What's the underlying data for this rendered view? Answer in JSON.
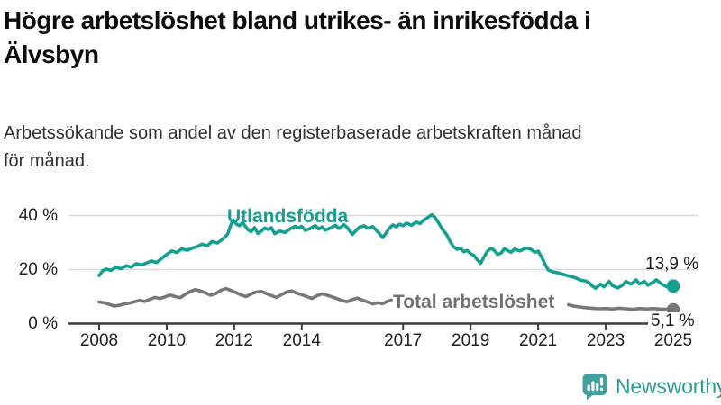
{
  "title": {
    "line1": "Högre arbetslöshet bland utrikes- än inrikesfödda i",
    "line2": "Älvsbyn"
  },
  "subtitle": {
    "line1": "Arbetssökande som andel av den registerbaserade arbetskraften månad",
    "line2": "för månad."
  },
  "logo": {
    "text": "Newsworthy",
    "icon": "newsworthy-bubble-barchart-icon",
    "text_color": "#2f9c92",
    "icon_color": "#43a39c"
  },
  "colors": {
    "foreign_born_line": "#14a090",
    "total_line": "#76767b",
    "gridline": "#dadada",
    "axis": "#3a3a3c",
    "axis_text": "#1f1f1f"
  },
  "chart_data": {
    "type": "line",
    "unit": "%",
    "grid": "horizontal",
    "x_range": [
      2008,
      2025.05
    ],
    "ylim": [
      0,
      44
    ],
    "yticks": [
      {
        "value": 40,
        "label": "40 %"
      },
      {
        "value": 20,
        "label": "20 %"
      },
      {
        "value": 0,
        "label": "0 %"
      }
    ],
    "xticks": [
      {
        "value": 2008,
        "label": "2008"
      },
      {
        "value": 2010,
        "label": "2010"
      },
      {
        "value": 2012,
        "label": "2012"
      },
      {
        "value": 2014,
        "label": "2014"
      },
      {
        "value": 2017,
        "label": "2017"
      },
      {
        "value": 2019,
        "label": "2019"
      },
      {
        "value": 2021,
        "label": "2021"
      },
      {
        "value": 2023,
        "label": "2023"
      },
      {
        "value": 2025,
        "label": "2025"
      }
    ],
    "series": [
      {
        "name": "Utlandsfödda",
        "color": "#14a090",
        "end_value": 13.9,
        "end_label": "13,9 %",
        "points": [
          [
            2008.0,
            17.8
          ],
          [
            2008.1,
            19.5
          ],
          [
            2008.2,
            20.2
          ],
          [
            2008.35,
            19.7
          ],
          [
            2008.5,
            20.9
          ],
          [
            2008.65,
            20.3
          ],
          [
            2008.8,
            21.4
          ],
          [
            2008.95,
            20.9
          ],
          [
            2009.1,
            22.2
          ],
          [
            2009.25,
            21.7
          ],
          [
            2009.4,
            22.4
          ],
          [
            2009.55,
            23.2
          ],
          [
            2009.7,
            22.6
          ],
          [
            2009.85,
            24.1
          ],
          [
            2010.0,
            25.6
          ],
          [
            2010.15,
            26.9
          ],
          [
            2010.3,
            26.3
          ],
          [
            2010.45,
            27.7
          ],
          [
            2010.6,
            27.1
          ],
          [
            2010.75,
            27.9
          ],
          [
            2010.9,
            28.5
          ],
          [
            2011.05,
            29.4
          ],
          [
            2011.2,
            28.8
          ],
          [
            2011.35,
            30.4
          ],
          [
            2011.5,
            29.8
          ],
          [
            2011.65,
            31.2
          ],
          [
            2011.8,
            33.0
          ],
          [
            2011.9,
            36.5
          ],
          [
            2011.97,
            38.3
          ],
          [
            2012.05,
            37.0
          ],
          [
            2012.15,
            36.2
          ],
          [
            2012.25,
            37.4
          ],
          [
            2012.4,
            34.8
          ],
          [
            2012.5,
            34.0
          ],
          [
            2012.6,
            35.5
          ],
          [
            2012.7,
            33.4
          ],
          [
            2012.8,
            34.2
          ],
          [
            2012.9,
            35.4
          ],
          [
            2013.0,
            34.8
          ],
          [
            2013.1,
            35.5
          ],
          [
            2013.2,
            33.3
          ],
          [
            2013.35,
            34.3
          ],
          [
            2013.5,
            33.7
          ],
          [
            2013.65,
            35.0
          ],
          [
            2013.8,
            36.0
          ],
          [
            2013.9,
            35.4
          ],
          [
            2014.0,
            36.0
          ],
          [
            2014.1,
            34.5
          ],
          [
            2014.25,
            35.2
          ],
          [
            2014.4,
            36.3
          ],
          [
            2014.5,
            35.0
          ],
          [
            2014.6,
            35.8
          ],
          [
            2014.7,
            34.6
          ],
          [
            2014.85,
            35.4
          ],
          [
            2015.0,
            36.4
          ],
          [
            2015.1,
            35.2
          ],
          [
            2015.25,
            36.6
          ],
          [
            2015.35,
            35.5
          ],
          [
            2015.5,
            33.0
          ],
          [
            2015.6,
            34.4
          ],
          [
            2015.7,
            35.6
          ],
          [
            2015.85,
            36.2
          ],
          [
            2015.95,
            35.3
          ],
          [
            2016.1,
            35.9
          ],
          [
            2016.25,
            34.0
          ],
          [
            2016.4,
            31.8
          ],
          [
            2016.5,
            33.6
          ],
          [
            2016.6,
            35.4
          ],
          [
            2016.7,
            36.5
          ],
          [
            2016.8,
            35.8
          ],
          [
            2016.9,
            36.8
          ],
          [
            2017.0,
            36.2
          ],
          [
            2017.1,
            37.2
          ],
          [
            2017.25,
            36.4
          ],
          [
            2017.4,
            37.6
          ],
          [
            2017.5,
            37.0
          ],
          [
            2017.6,
            38.2
          ],
          [
            2017.7,
            39.0
          ],
          [
            2017.85,
            40.3
          ],
          [
            2017.95,
            39.2
          ],
          [
            2018.05,
            37.3
          ],
          [
            2018.15,
            35.2
          ],
          [
            2018.3,
            32.8
          ],
          [
            2018.4,
            30.2
          ],
          [
            2018.5,
            28.4
          ],
          [
            2018.6,
            27.5
          ],
          [
            2018.7,
            27.9
          ],
          [
            2018.8,
            26.6
          ],
          [
            2018.9,
            27.1
          ],
          [
            2019.0,
            25.9
          ],
          [
            2019.1,
            25.2
          ],
          [
            2019.2,
            23.6
          ],
          [
            2019.3,
            22.3
          ],
          [
            2019.4,
            24.8
          ],
          [
            2019.5,
            26.8
          ],
          [
            2019.6,
            27.9
          ],
          [
            2019.7,
            27.1
          ],
          [
            2019.8,
            25.6
          ],
          [
            2019.9,
            26.1
          ],
          [
            2020.0,
            27.7
          ],
          [
            2020.1,
            27.0
          ],
          [
            2020.2,
            26.4
          ],
          [
            2020.3,
            27.6
          ],
          [
            2020.45,
            26.9
          ],
          [
            2020.55,
            27.4
          ],
          [
            2020.65,
            28.0
          ],
          [
            2020.8,
            27.4
          ],
          [
            2020.9,
            26.4
          ],
          [
            2021.0,
            26.8
          ],
          [
            2021.1,
            24.7
          ],
          [
            2021.2,
            22.1
          ],
          [
            2021.3,
            19.8
          ],
          [
            2021.45,
            19.1
          ],
          [
            2021.55,
            18.9
          ],
          [
            2021.7,
            18.4
          ],
          [
            2021.85,
            17.8
          ],
          [
            2021.95,
            17.5
          ],
          [
            2022.1,
            17.0
          ],
          [
            2022.25,
            16.1
          ],
          [
            2022.4,
            15.8
          ],
          [
            2022.5,
            15.2
          ],
          [
            2022.6,
            13.9
          ],
          [
            2022.7,
            13.1
          ],
          [
            2022.85,
            14.6
          ],
          [
            2022.95,
            13.6
          ],
          [
            2023.1,
            15.6
          ],
          [
            2023.2,
            14.1
          ],
          [
            2023.35,
            13.2
          ],
          [
            2023.5,
            14.2
          ],
          [
            2023.6,
            15.6
          ],
          [
            2023.75,
            14.6
          ],
          [
            2023.9,
            16.2
          ],
          [
            2024.0,
            14.7
          ],
          [
            2024.15,
            15.6
          ],
          [
            2024.25,
            14.2
          ],
          [
            2024.4,
            15.3
          ],
          [
            2024.5,
            16.2
          ],
          [
            2024.65,
            14.7
          ],
          [
            2024.8,
            13.7
          ],
          [
            2024.9,
            14.5
          ],
          [
            2025.0,
            13.9
          ]
        ]
      },
      {
        "name": "Total arbetslöshet",
        "color": "#76767b",
        "end_value": 5.1,
        "end_label": "5,1 %",
        "points": [
          [
            2008.0,
            8.0
          ],
          [
            2008.15,
            7.7
          ],
          [
            2008.3,
            7.1
          ],
          [
            2008.45,
            6.5
          ],
          [
            2008.6,
            6.8
          ],
          [
            2008.75,
            7.3
          ],
          [
            2008.9,
            7.6
          ],
          [
            2009.05,
            8.1
          ],
          [
            2009.2,
            8.6
          ],
          [
            2009.35,
            8.2
          ],
          [
            2009.5,
            9.0
          ],
          [
            2009.65,
            9.7
          ],
          [
            2009.8,
            9.3
          ],
          [
            2009.95,
            9.9
          ],
          [
            2010.1,
            10.6
          ],
          [
            2010.25,
            10.0
          ],
          [
            2010.4,
            9.6
          ],
          [
            2010.55,
            10.8
          ],
          [
            2010.7,
            11.9
          ],
          [
            2010.85,
            12.6
          ],
          [
            2011.0,
            12.1
          ],
          [
            2011.15,
            11.4
          ],
          [
            2011.3,
            10.5
          ],
          [
            2011.45,
            11.1
          ],
          [
            2011.6,
            12.3
          ],
          [
            2011.75,
            13.0
          ],
          [
            2011.9,
            12.3
          ],
          [
            2012.05,
            11.5
          ],
          [
            2012.2,
            10.6
          ],
          [
            2012.35,
            10.0
          ],
          [
            2012.5,
            11.0
          ],
          [
            2012.65,
            11.7
          ],
          [
            2012.8,
            11.9
          ],
          [
            2012.95,
            11.1
          ],
          [
            2013.1,
            10.4
          ],
          [
            2013.25,
            9.7
          ],
          [
            2013.4,
            10.7
          ],
          [
            2013.55,
            11.7
          ],
          [
            2013.7,
            12.1
          ],
          [
            2013.85,
            11.3
          ],
          [
            2014.0,
            10.7
          ],
          [
            2014.15,
            10.0
          ],
          [
            2014.3,
            9.3
          ],
          [
            2014.45,
            10.3
          ],
          [
            2014.6,
            11.0
          ],
          [
            2014.75,
            10.5
          ],
          [
            2014.9,
            9.9
          ],
          [
            2015.05,
            9.2
          ],
          [
            2015.2,
            8.5
          ],
          [
            2015.35,
            8.1
          ],
          [
            2015.5,
            8.9
          ],
          [
            2015.65,
            9.4
          ],
          [
            2015.8,
            8.7
          ],
          [
            2015.95,
            8.0
          ],
          [
            2016.1,
            7.3
          ],
          [
            2016.25,
            7.7
          ],
          [
            2016.4,
            7.4
          ],
          [
            2016.55,
            8.3
          ],
          [
            2016.65,
            8.7
          ],
          [
            2016.8,
            null
          ],
          [
            2021.9,
            7.0
          ],
          [
            2022.05,
            6.5
          ],
          [
            2022.2,
            6.2
          ],
          [
            2022.4,
            5.9
          ],
          [
            2022.6,
            5.7
          ],
          [
            2022.8,
            5.5
          ],
          [
            2023.0,
            5.6
          ],
          [
            2023.2,
            5.4
          ],
          [
            2023.4,
            5.7
          ],
          [
            2023.6,
            5.5
          ],
          [
            2023.8,
            5.3
          ],
          [
            2024.0,
            5.6
          ],
          [
            2024.2,
            5.4
          ],
          [
            2024.4,
            5.6
          ],
          [
            2024.6,
            5.4
          ],
          [
            2024.8,
            5.3
          ],
          [
            2025.0,
            5.1
          ]
        ]
      }
    ]
  }
}
